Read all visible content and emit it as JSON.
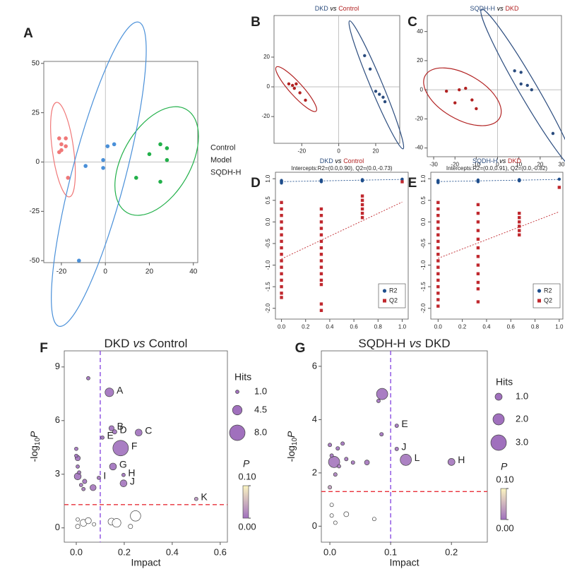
{
  "chart_data": [
    {
      "panel": "A",
      "type": "scatter",
      "xlim": [
        -28,
        42
      ],
      "ylim": [
        -51,
        51
      ],
      "xticks": [
        -20,
        0,
        20,
        40
      ],
      "yticks": [
        -50,
        -25,
        0,
        25,
        50
      ],
      "zero_lines": true,
      "ellipses": true,
      "legend": "right",
      "series": [
        {
          "name": "Control",
          "color": "#f07878",
          "x": [
            -21,
            -18,
            -20,
            -18,
            -20,
            -21,
            -17
          ],
          "values": [
            12,
            12,
            9,
            8,
            6,
            5,
            -8
          ]
        },
        {
          "name": "Model",
          "color": "#22b04a",
          "x": [
            20,
            25,
            28,
            28,
            14,
            25
          ],
          "values": [
            4,
            9,
            7,
            1,
            -8,
            -10
          ]
        },
        {
          "name": "SQDH-H",
          "color": "#4a90d9",
          "x": [
            1,
            4,
            -1,
            -1,
            -9,
            -12
          ],
          "values": [
            8,
            9,
            1,
            -3,
            -2,
            -50
          ]
        }
      ]
    },
    {
      "panel": "B",
      "type": "scatter",
      "title": [
        "DKD",
        "vs",
        "Control"
      ],
      "title_colors": [
        "#2b4c7e",
        "#000000",
        "#b22222"
      ],
      "xlim": [
        -35,
        33
      ],
      "ylim": [
        -38,
        48
      ],
      "xticks": [
        -20,
        0,
        20
      ],
      "yticks": [
        -20,
        0,
        20
      ],
      "zero_lines": true,
      "ellipses": true,
      "series": [
        {
          "color": "#2b4c7e",
          "x": [
            14,
            17,
            20,
            22,
            24,
            25
          ],
          "values": [
            21,
            12,
            -3,
            -5,
            -7,
            -10
          ]
        },
        {
          "color": "#b22222",
          "x": [
            -27,
            -25,
            -24,
            -23,
            -21,
            -18
          ],
          "values": [
            2,
            1,
            -1,
            2,
            -4,
            -9
          ]
        }
      ]
    },
    {
      "panel": "C",
      "type": "scatter",
      "title": [
        "SQDH-H",
        "vs",
        "DKD"
      ],
      "title_colors": [
        "#2b4c7e",
        "#000000",
        "#b22222"
      ],
      "xlim": [
        -33,
        30
      ],
      "ylim": [
        -46,
        51
      ],
      "xticks": [
        -30,
        -20,
        -10,
        0,
        10,
        20,
        30
      ],
      "yticks": [
        -40,
        -20,
        0,
        20,
        40
      ],
      "zero_lines": true,
      "ellipses": true,
      "series": [
        {
          "color": "#2b4c7e",
          "x": [
            8,
            11,
            11,
            14,
            16,
            26
          ],
          "values": [
            13,
            12,
            4,
            3,
            0,
            -30
          ]
        },
        {
          "color": "#b22222",
          "x": [
            -24,
            -20,
            -18,
            -15,
            -12,
            -10
          ],
          "values": [
            -1,
            -9,
            0,
            1,
            -7,
            -13
          ]
        }
      ]
    },
    {
      "panel": "D",
      "type": "scatter",
      "title": [
        "DKD",
        "vs",
        "Control"
      ],
      "title_colors": [
        "#2b4c7e",
        "#000000",
        "#b22222"
      ],
      "subtitle": "Intercepts:R2=(0.0,0.90), Q2=(0.0,-0.73)",
      "xlim": [
        -0.05,
        1.05
      ],
      "ylim": [
        -2.25,
        1.15
      ],
      "xticks": [
        {
          "value": 0,
          "label": "0.0"
        },
        0.2,
        0.4,
        0.6,
        0.8,
        {
          "value": 1,
          "label": "1.0"
        }
      ],
      "yticks": [
        {
          "value": -2,
          "label": "-2.0"
        },
        -1.5,
        {
          "value": -1,
          "label": "-1.0"
        },
        -0.5,
        {
          "value": 0,
          "label": "0.0"
        },
        0.5,
        {
          "value": 1,
          "label": "1.0"
        }
      ],
      "ytick_rotation": -90,
      "trend_lines": true,
      "legend": "bottom-right",
      "series": [
        {
          "name": "R2",
          "color": "#1f4e8c",
          "marker": "circle",
          "x": [
            0,
            0,
            0,
            0,
            0,
            0,
            0.33,
            0.33,
            0.33,
            0.33,
            0.33,
            0.67,
            0.67,
            0.67,
            0.67,
            1
          ],
          "values": [
            0.9,
            0.92,
            0.93,
            0.94,
            0.95,
            0.96,
            0.93,
            0.94,
            0.95,
            0.96,
            0.97,
            0.95,
            0.96,
            0.97,
            0.98,
            0.99
          ]
        },
        {
          "name": "Q2",
          "color": "#c0282e",
          "marker": "square",
          "x": [
            0,
            0,
            0,
            0,
            0,
            0,
            0,
            0,
            0,
            0,
            0,
            0,
            0,
            0,
            0,
            0,
            0.33,
            0.33,
            0.33,
            0.33,
            0.33,
            0.33,
            0.33,
            0.33,
            0.33,
            0.33,
            0.33,
            0.33,
            0.33,
            0.33,
            0.33,
            0.67,
            0.67,
            0.67,
            0.67,
            0.67,
            0.67,
            1
          ],
          "values": [
            0.45,
            0.3,
            0.15,
            0,
            -0.15,
            -0.3,
            -0.45,
            -0.6,
            -0.75,
            -0.9,
            -1.05,
            -1.2,
            -1.35,
            -1.5,
            -1.65,
            -1.75,
            0.3,
            0.15,
            0,
            -0.15,
            -0.3,
            -0.45,
            -0.6,
            -0.75,
            -0.9,
            -1.05,
            -1.2,
            -1.35,
            -1.45,
            -1.9,
            -2.05,
            0.6,
            0.5,
            0.4,
            0.3,
            0.2,
            0.1,
            0.93
          ]
        }
      ]
    },
    {
      "panel": "E",
      "type": "scatter",
      "title": [
        "SQDH-H",
        "vs",
        "DKD"
      ],
      "title_colors": [
        "#2b4c7e",
        "#000000",
        "#b22222"
      ],
      "subtitle": "Intercepts:R2=(0.0,0.91), Q2=(0.0,-0.82)",
      "xlim": [
        -0.06,
        1.03
      ],
      "ylim": [
        -2.25,
        1.15
      ],
      "xticks": [
        {
          "value": 0,
          "label": "0.0"
        },
        0.2,
        0.4,
        0.6,
        0.8,
        {
          "value": 1,
          "label": "1.0"
        }
      ],
      "yticks": [
        {
          "value": -2,
          "label": "-2.0"
        },
        -1.5,
        {
          "value": -1,
          "label": "-1.0"
        },
        -0.5,
        {
          "value": 0,
          "label": "0.0"
        },
        0.5,
        {
          "value": 1,
          "label": "1.0"
        }
      ],
      "ytick_rotation": -90,
      "trend_lines": true,
      "legend": "bottom-right",
      "series": [
        {
          "name": "R2",
          "color": "#1f4e8c",
          "marker": "circle",
          "x": [
            0,
            0,
            0,
            0,
            0,
            0,
            0.33,
            0.33,
            0.33,
            0.33,
            0.33,
            0.67,
            0.67,
            0.67,
            0.67,
            1
          ],
          "values": [
            0.91,
            0.92,
            0.93,
            0.94,
            0.95,
            0.96,
            0.93,
            0.94,
            0.95,
            0.96,
            0.97,
            0.95,
            0.96,
            0.97,
            0.98,
            0.99
          ]
        },
        {
          "name": "Q2",
          "color": "#c0282e",
          "marker": "square",
          "x": [
            0,
            0,
            0,
            0,
            0,
            0,
            0,
            0,
            0,
            0,
            0,
            0,
            0,
            0,
            0,
            0,
            0,
            0.33,
            0.33,
            0.33,
            0.33,
            0.33,
            0.33,
            0.33,
            0.33,
            0.33,
            0.33,
            0.33,
            0.33,
            0.67,
            0.67,
            0.67,
            0.67,
            0.67,
            0.67,
            1
          ],
          "values": [
            0.45,
            0.3,
            0.15,
            0,
            -0.15,
            -0.3,
            -0.45,
            -0.6,
            -0.75,
            -0.9,
            -1.05,
            -1.2,
            -1.35,
            -1.5,
            -1.65,
            -1.8,
            -1.95,
            0.4,
            0.2,
            0,
            -0.2,
            -0.4,
            -0.6,
            -0.8,
            -1,
            -1.2,
            -1.4,
            -1.55,
            -1.85,
            0.2,
            0.1,
            0,
            -0.1,
            -0.2,
            -0.3,
            0.8
          ]
        }
      ]
    },
    {
      "panel": "F",
      "type": "bubble",
      "title": [
        "DKD",
        "vs",
        "Control"
      ],
      "xlabel": "Impact",
      "ylabel": [
        "-log",
        "10",
        "P"
      ],
      "xlim": [
        -0.05,
        0.63
      ],
      "ylim": [
        -0.8,
        9.9
      ],
      "xticks": [
        {
          "value": 0,
          "label": "0.0"
        },
        0.2,
        0.4,
        0.6
      ],
      "yticks": [
        0,
        3,
        6,
        9
      ],
      "vline": 0.1,
      "hline": 1.3,
      "line_colors": [
        "#8a4de0",
        "#e8303a"
      ],
      "x": [
        0.05,
        0.138,
        0.147,
        0.16,
        0.26,
        0.109,
        0.185,
        0.153,
        0.197,
        0.197,
        0.094,
        0.5,
        0.006,
        0.006,
        0.035,
        0.07,
        0,
        0,
        0.006,
        0.012,
        0.02,
        0.03,
        0.006,
        0.03,
        0.05,
        0.147,
        0.168,
        0.247,
        0.226,
        0.006,
        0.074
      ],
      "values": [
        8.37,
        7.58,
        5.57,
        5.37,
        5.33,
        5.05,
        4.46,
        3.43,
        2.96,
        2.49,
        2.8,
        1.62,
        3.9,
        2.88,
        2.6,
        2.25,
        4.42,
        4.03,
        3.43,
        3.1,
        2.4,
        2.17,
        0.47,
        0.28,
        0.4,
        0.35,
        0.28,
        0.67,
        0.08,
        0.08,
        0.2
      ],
      "sizes": [
        1,
        4,
        2,
        1.5,
        3,
        1,
        8,
        3,
        1,
        3,
        1,
        1,
        2,
        3,
        1.5,
        2.5,
        1,
        1,
        1,
        1,
        1,
        1,
        1,
        3,
        2.5,
        3,
        4,
        5,
        1.5,
        1.5,
        1
      ],
      "labels": [
        null,
        "A",
        "B",
        "D",
        "C",
        "E",
        "F",
        "G",
        "H",
        "J",
        "I",
        "K",
        null,
        null,
        null,
        null,
        null,
        null,
        null,
        null,
        null,
        null,
        null,
        null,
        null,
        null,
        null,
        null,
        null,
        null,
        null
      ],
      "label_colors": [
        null,
        "#222222",
        "#222222",
        "#222222",
        "#222222",
        "#e02020",
        "#222222",
        "#222222",
        "#e02020",
        "#e02020",
        "#222222",
        "#222222",
        null,
        null,
        null,
        null,
        null,
        null,
        null,
        null,
        null,
        null,
        null,
        null,
        null,
        null,
        null,
        null,
        null,
        null,
        null
      ],
      "size_legend": {
        "title": "Hits",
        "ticks": [
          {
            "value": 1,
            "label": "1.0"
          },
          4.5,
          {
            "value": 8,
            "label": "8.0"
          }
        ]
      },
      "colorbar": {
        "title": "P",
        "colors": [
          "#a070bd",
          "#fbf5c0"
        ],
        "ticks": [
          {
            "value": 0.1,
            "label": "0.10"
          },
          {
            "value": 0,
            "label": "0.00"
          }
        ]
      }
    },
    {
      "panel": "G",
      "type": "bubble",
      "title": [
        "SQDH-H",
        "vs",
        "DKD"
      ],
      "xlabel": "Impact",
      "ylabel": [
        "-log",
        "10",
        "P"
      ],
      "xlim": [
        -0.014,
        0.259
      ],
      "ylim": [
        -0.6,
        6.58
      ],
      "xticks": [
        {
          "value": 0,
          "label": "0.0"
        },
        0.1,
        0.2
      ],
      "yticks": [
        0,
        2,
        4,
        6
      ],
      "vline": 0.1,
      "hline": 1.3,
      "line_colors": [
        "#8a4de0",
        "#e8303a"
      ],
      "x": [
        0.086,
        0.11,
        0.11,
        0.125,
        0.2,
        0.007,
        0,
        0.003,
        0.013,
        0.021,
        0.027,
        0.038,
        0.061,
        0.085,
        0,
        0.009,
        0.015,
        0.08,
        0.003,
        0.003,
        0.027,
        0.073,
        0.009
      ],
      "values": [
        4.96,
        3.77,
        2.9,
        2.49,
        2.41,
        2.41,
        3.05,
        2.65,
        2.92,
        3.1,
        2.52,
        2.39,
        2.39,
        3.45,
        1.46,
        1.94,
        2.25,
        4.7,
        0.8,
        0.4,
        0.45,
        0.27,
        0.13
      ],
      "sizes": [
        2,
        0.2,
        0.2,
        2,
        1,
        2,
        0.2,
        0.2,
        0.2,
        0.2,
        0.2,
        0.2,
        0.5,
        0.2,
        0.2,
        0.2,
        0.2,
        0.2,
        0.2,
        0.2,
        0.5,
        0.2,
        0.2
      ],
      "labels": [
        null,
        "E",
        "J",
        "L",
        "H",
        null,
        null,
        null,
        null,
        null,
        null,
        null,
        null,
        null,
        null,
        null,
        null,
        null,
        null,
        null,
        null,
        null,
        null
      ],
      "label_colors": [
        null,
        "#e02020",
        "#e02020",
        "#222222",
        "#e02020",
        null,
        null,
        null,
        null,
        null,
        null,
        null,
        null,
        null,
        null,
        null,
        null,
        null,
        null,
        null,
        null,
        null,
        null
      ],
      "size_legend": {
        "title": "Hits",
        "ticks": [
          {
            "value": 1,
            "label": "1.0"
          },
          {
            "value": 2,
            "label": "2.0"
          },
          {
            "value": 3,
            "label": "3.0"
          }
        ]
      },
      "colorbar": {
        "title": "P",
        "colors": [
          "#a070bd",
          "#fbf5c0"
        ],
        "ticks": [
          {
            "value": 0.1,
            "label": "0.10"
          },
          {
            "value": 0,
            "label": "0.00"
          }
        ]
      }
    }
  ]
}
